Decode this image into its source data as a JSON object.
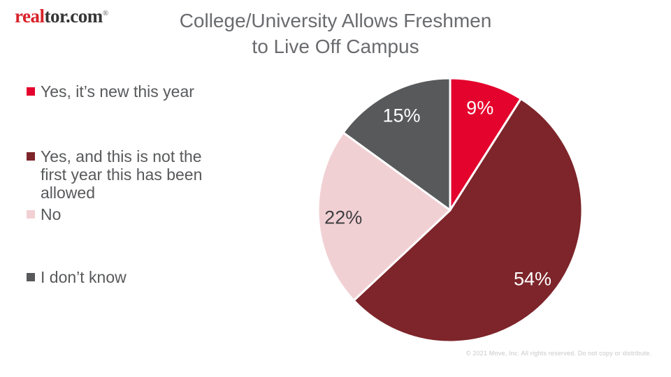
{
  "logo": {
    "brand_red": "real",
    "brand_rest": "tor.com",
    "registered_mark": "®"
  },
  "title": {
    "line1": "College/University Allows Freshmen",
    "line2": "to Live Off Campus"
  },
  "chart_data": {
    "type": "pie",
    "title": "College/University Allows Freshmen to Live Off Campus",
    "unit": "%",
    "direction": "clockwise",
    "start_angle_deg": 0,
    "legend_position": "left",
    "slices": [
      {
        "label": "Yes, it’s new this year",
        "value": 9,
        "color": "#E4032D",
        "label_color": "#FFFFFF"
      },
      {
        "label": "Yes, and this is not the first year this has been allowed",
        "value": 54,
        "color": "#7D252A",
        "label_color": "#FFFFFF"
      },
      {
        "label": "No",
        "value": 22,
        "color": "#F1D0D4",
        "label_color": "#3F3F41"
      },
      {
        "label": "I don’t know",
        "value": 15,
        "color": "#58595B",
        "label_color": "#FFFFFF"
      }
    ]
  },
  "footer": {
    "copyright": "© 2021 Move, Inc. All rights reserved. Do not copy or distribute."
  }
}
